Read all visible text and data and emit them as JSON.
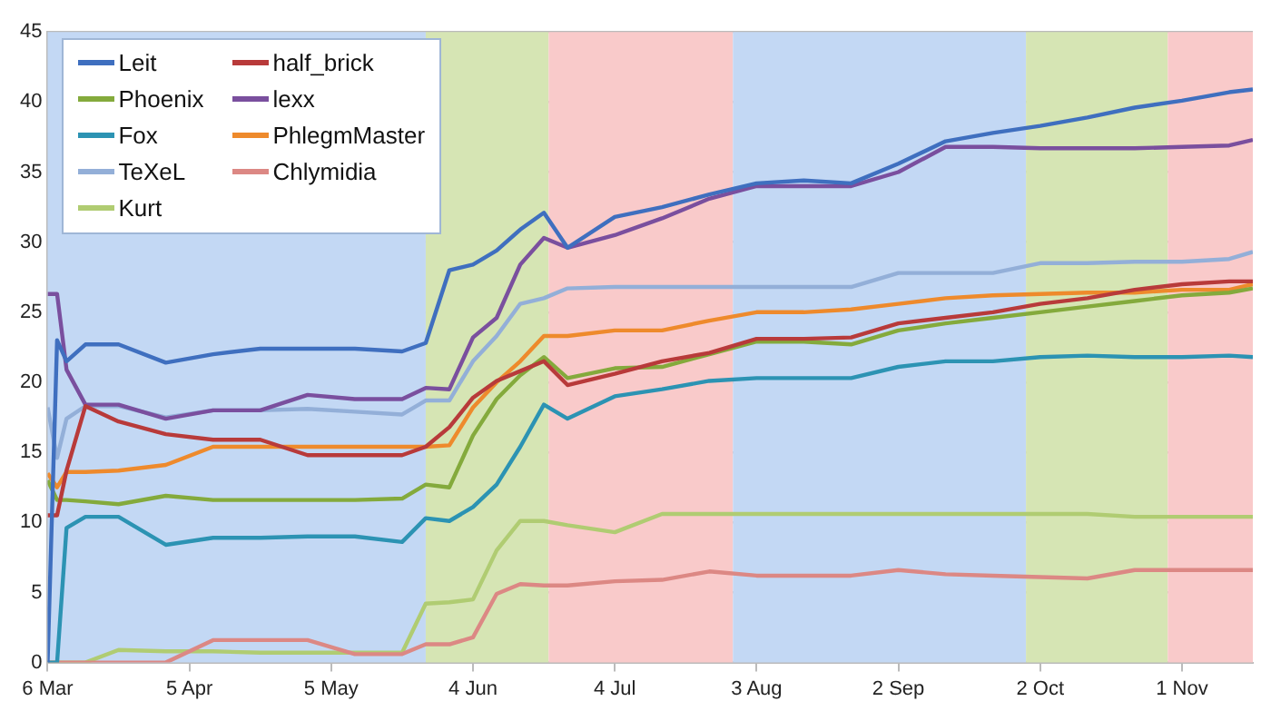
{
  "chart_data": {
    "type": "line",
    "x": [
      "--03-06",
      "--03-08",
      "--03-10",
      "--03-14",
      "--03-21",
      "--03-31",
      "--04-10",
      "--04-20",
      "--04-30",
      "--05-10",
      "--05-20",
      "--05-25",
      "--05-30",
      "--06-04",
      "--06-09",
      "--06-14",
      "--06-19",
      "--06-24",
      "--07-04",
      "--07-14",
      "--07-24",
      "--08-03",
      "--08-13",
      "--08-23",
      "--09-02",
      "--09-12",
      "--09-22",
      "--10-02",
      "--10-12",
      "--10-22",
      "--11-01",
      "--11-11",
      "--11-16"
    ],
    "series": [
      {
        "name": "Leit",
        "color": "#3f6fbf",
        "values": [
          0,
          23,
          21.5,
          22.7,
          22.7,
          21.4,
          22.0,
          22.4,
          22.4,
          22.4,
          22.2,
          22.8,
          28.0,
          28.4,
          29.4,
          30.9,
          32.1,
          29.6,
          31.8,
          32.5,
          33.4,
          34.2,
          34.4,
          34.2,
          35.6,
          37.2,
          37.8,
          38.3,
          38.9,
          39.6,
          40.1,
          40.7,
          40.9
        ]
      },
      {
        "name": "half_brick",
        "color": "#b83a3a",
        "values": [
          10.5,
          10.5,
          13.7,
          18.3,
          17.2,
          16.3,
          15.9,
          15.9,
          14.8,
          14.8,
          14.8,
          15.4,
          16.8,
          18.9,
          20.1,
          20.8,
          21.5,
          19.8,
          20.6,
          21.5,
          22.1,
          23.1,
          23.1,
          23.2,
          24.2,
          24.6,
          25.0,
          25.6,
          26.0,
          26.6,
          27.0,
          27.2,
          27.2
        ]
      },
      {
        "name": "Phoenix",
        "color": "#84aa3c",
        "values": [
          13.0,
          11.6,
          11.6,
          11.5,
          11.3,
          11.9,
          11.6,
          11.6,
          11.6,
          11.6,
          11.7,
          12.7,
          12.5,
          16.2,
          18.8,
          20.5,
          21.8,
          20.3,
          21.0,
          21.1,
          22.0,
          22.9,
          22.9,
          22.7,
          23.7,
          24.2,
          24.6,
          25.0,
          25.4,
          25.8,
          26.2,
          26.4,
          26.7
        ]
      },
      {
        "name": "lexx",
        "color": "#7a4f9e",
        "values": [
          26.3,
          26.3,
          20.9,
          18.4,
          18.4,
          17.4,
          18.0,
          18.0,
          19.1,
          18.8,
          18.8,
          19.6,
          19.5,
          23.2,
          24.6,
          28.4,
          30.3,
          29.6,
          30.5,
          31.7,
          33.1,
          34.0,
          34.0,
          34.0,
          35.0,
          36.8,
          36.8,
          36.7,
          36.7,
          36.7,
          36.8,
          36.9,
          37.3
        ]
      },
      {
        "name": "Fox",
        "color": "#2c93b3",
        "values": [
          0,
          0,
          9.6,
          10.4,
          10.4,
          8.4,
          8.9,
          8.9,
          9.0,
          9.0,
          8.6,
          10.3,
          10.1,
          11.1,
          12.7,
          15.4,
          18.4,
          17.4,
          19.0,
          19.5,
          20.1,
          20.3,
          20.3,
          20.3,
          21.1,
          21.5,
          21.5,
          21.8,
          21.9,
          21.8,
          21.8,
          21.9,
          21.8
        ]
      },
      {
        "name": "PhlegmMaster",
        "color": "#ee8a2c",
        "values": [
          13.5,
          12.5,
          13.6,
          13.6,
          13.7,
          14.1,
          15.4,
          15.4,
          15.4,
          15.4,
          15.4,
          15.4,
          15.5,
          18.2,
          20.0,
          21.5,
          23.3,
          23.3,
          23.7,
          23.7,
          24.4,
          25.0,
          25.0,
          25.2,
          25.6,
          26.0,
          26.2,
          26.3,
          26.4,
          26.4,
          26.6,
          26.6,
          27.0
        ]
      },
      {
        "name": "TeXeL",
        "color": "#93afd8",
        "values": [
          18.2,
          14.6,
          17.4,
          18.3,
          18.3,
          17.5,
          18.0,
          18.0,
          18.1,
          17.9,
          17.7,
          18.7,
          18.7,
          21.5,
          23.3,
          25.6,
          26.0,
          26.7,
          26.8,
          26.8,
          26.8,
          26.8,
          26.8,
          26.8,
          27.8,
          27.8,
          27.8,
          28.5,
          28.5,
          28.6,
          28.6,
          28.8,
          29.3
        ]
      },
      {
        "name": "Chlymidia",
        "color": "#dc8884",
        "values": [
          0,
          0,
          0,
          0,
          0,
          0,
          1.6,
          1.6,
          1.6,
          0.6,
          0.6,
          1.3,
          1.3,
          1.8,
          4.9,
          5.6,
          5.5,
          5.5,
          5.8,
          5.9,
          6.5,
          6.2,
          6.2,
          6.2,
          6.6,
          6.3,
          6.2,
          6.1,
          6.0,
          6.6,
          6.6,
          6.6,
          6.6
        ]
      },
      {
        "name": "Kurt",
        "color": "#b0cc72",
        "values": [
          0,
          0,
          0,
          0,
          0.9,
          0.8,
          0.8,
          0.7,
          0.7,
          0.7,
          0.7,
          4.2,
          4.3,
          4.5,
          8.0,
          10.1,
          10.1,
          9.8,
          9.3,
          10.6,
          10.6,
          10.6,
          10.6,
          10.6,
          10.6,
          10.6,
          10.6,
          10.6,
          10.6,
          10.4,
          10.4,
          10.4,
          10.4
        ]
      }
    ],
    "xlim": [
      "--03-06",
      "--11-16"
    ],
    "xticks": [
      {
        "value": "--03-06",
        "label": "6 Mar"
      },
      {
        "value": "--04-05",
        "label": "5 Apr"
      },
      {
        "value": "--05-05",
        "label": "5 May"
      },
      {
        "value": "--06-04",
        "label": "4 Jun"
      },
      {
        "value": "--07-04",
        "label": "4 Jul"
      },
      {
        "value": "--08-03",
        "label": "3 Aug"
      },
      {
        "value": "--09-02",
        "label": "2 Sep"
      },
      {
        "value": "--10-02",
        "label": "2 Oct"
      },
      {
        "value": "--11-01",
        "label": "1 Nov"
      }
    ],
    "ylim": [
      0,
      45
    ],
    "yticks": [
      0,
      5,
      10,
      15,
      20,
      25,
      30,
      35,
      40,
      45
    ],
    "bands": [
      {
        "axis": "x",
        "from": "--03-06",
        "to": "--05-25",
        "color": "#c3d8f4"
      },
      {
        "axis": "x",
        "from": "--05-25",
        "to": "--06-20",
        "color": "#d6e5b4"
      },
      {
        "axis": "x",
        "from": "--06-20",
        "to": "--07-29",
        "color": "#f9caca"
      },
      {
        "axis": "x",
        "from": "--07-29",
        "to": "--09-29",
        "color": "#c3d8f4"
      },
      {
        "axis": "x",
        "from": "--09-29",
        "to": "--10-29",
        "color": "#d6e5b4"
      },
      {
        "axis": "x",
        "from": "--10-29",
        "to": "--11-16",
        "color": "#f9caca"
      }
    ],
    "grid": "y",
    "legend": "top left"
  }
}
